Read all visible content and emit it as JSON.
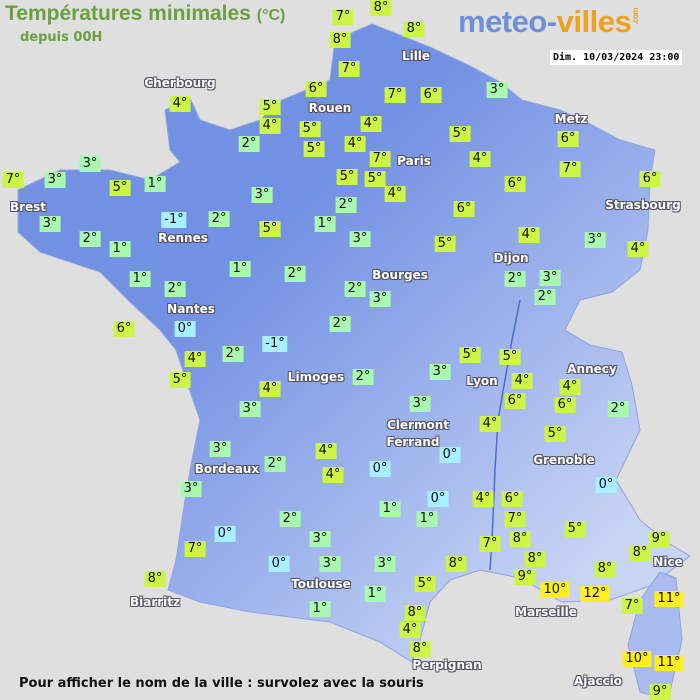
{
  "header": {
    "title": "Températures minimales",
    "unit": "(°C)",
    "subtitle": "depuis 00H"
  },
  "logo": {
    "part1": "meteo-",
    "part2": "villes",
    "tld": ".com"
  },
  "timestamp": "Dim. 10/03/2024 23:00",
  "footer": "Pour afficher le nom de la ville : survolez avec la souris",
  "colors": {
    "cold": "#a8f0ff",
    "cool": "#a8f8b0",
    "mild": "#ccf545",
    "warm": "#ffee22",
    "land": "#7391e3",
    "sea": "#e0dfdf"
  },
  "cities": [
    "Cherbourg",
    "Rouen",
    "Lille",
    "Paris",
    "Metz",
    "Strasbourg",
    "Brest",
    "Rennes",
    "Nantes",
    "Bourges",
    "Dijon",
    "Limoges",
    "Lyon",
    "Annecy",
    "Clermont",
    "Ferrand",
    "Grenoble",
    "Bordeaux",
    "Toulouse",
    "Biarritz",
    "Marseille",
    "Nice",
    "Perpignan",
    "Ajaccio"
  ],
  "temperatures": [
    "7°",
    "8°",
    "8°",
    "8°",
    "7°",
    "6°",
    "4°",
    "5°",
    "4°",
    "5°",
    "5°",
    "2°",
    "4°",
    "4°",
    "7°",
    "6°",
    "3°",
    "5°",
    "4°",
    "7°",
    "5°",
    "5°",
    "4°",
    "6°",
    "6°",
    "7°",
    "6°",
    "3°",
    "3°",
    "7°",
    "5°",
    "1°",
    "3°",
    "2°",
    "6°",
    "-1°",
    "2°",
    "5°",
    "1°",
    "3°",
    "2°",
    "1°",
    "3°",
    "5°",
    "4°",
    "3°",
    "4°",
    "1°",
    "2°",
    "1°",
    "2°",
    "2°",
    "3°",
    "2°",
    "3°",
    "2°",
    "6°",
    "0°",
    "2°",
    "-1°",
    "4°",
    "2°",
    "5°",
    "5°",
    "5°",
    "2°",
    "3°",
    "4°",
    "4°",
    "4°",
    "3°",
    "6°",
    "6°",
    "2°",
    "3°",
    "4°",
    "5°",
    "3°",
    "2°",
    "4°",
    "4°",
    "0°",
    "0°",
    "3°",
    "0°",
    "0°",
    "4°",
    "6°",
    "1°",
    "1°",
    "2°",
    "7°",
    "5°",
    "0°",
    "3°",
    "7°",
    "8°",
    "9°",
    "7°",
    "8°",
    "0°",
    "3°",
    "3°",
    "8°",
    "8°",
    "9°",
    "8°",
    "10°",
    "8°",
    "5°",
    "1°",
    "12°",
    "11°",
    "7°",
    "1°",
    "8°",
    "4°",
    "8°",
    "10°",
    "11°",
    "9°"
  ]
}
